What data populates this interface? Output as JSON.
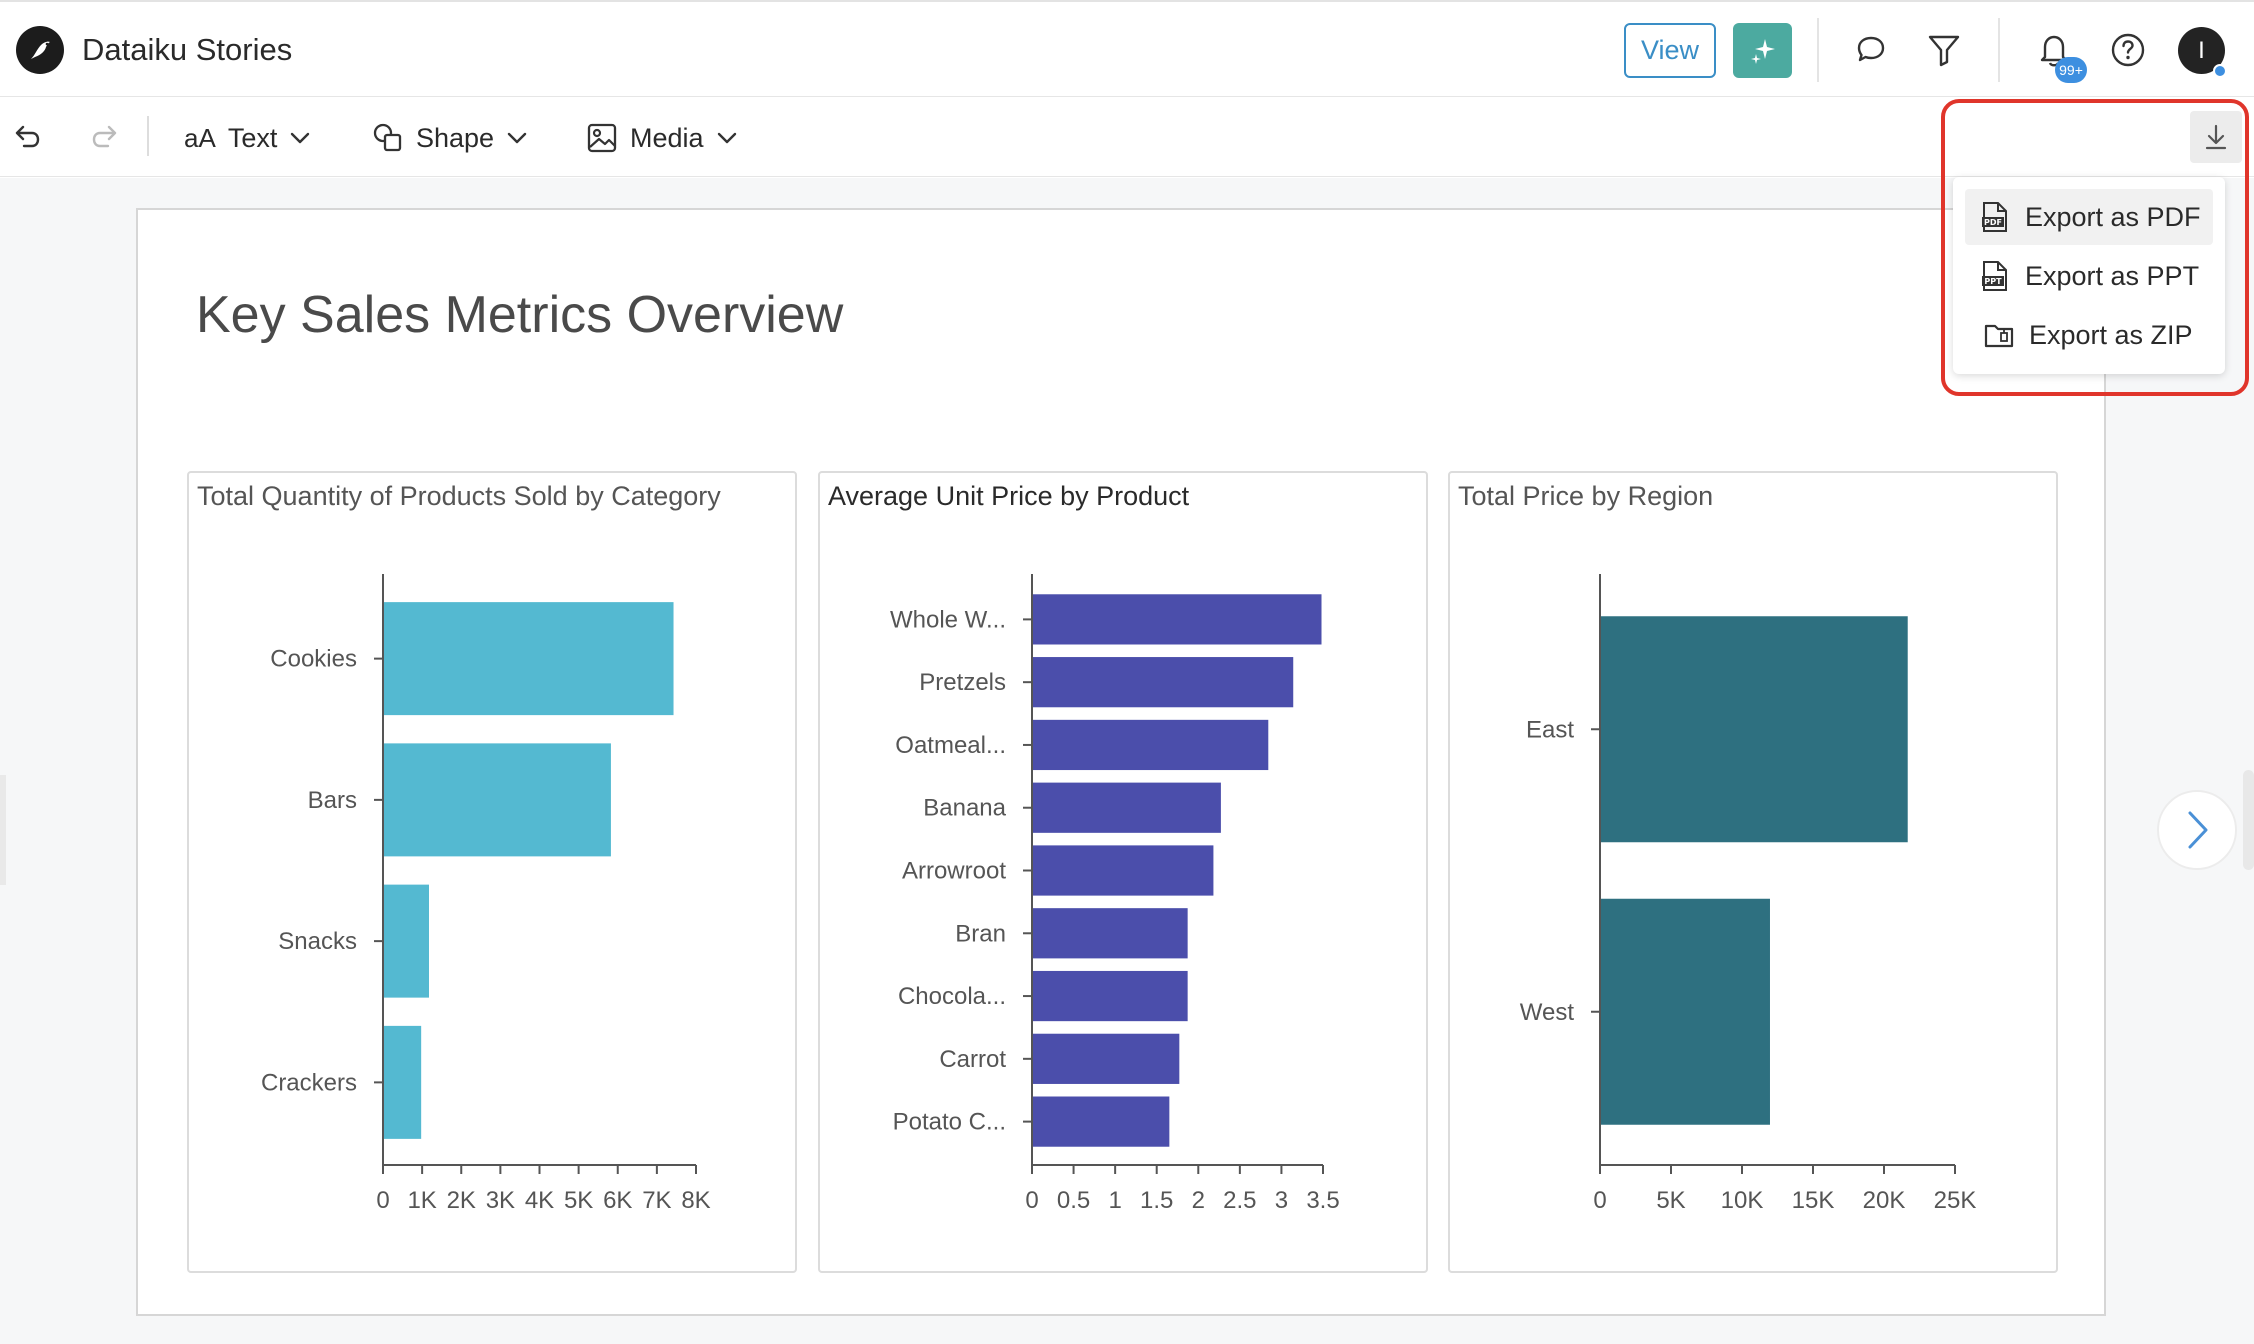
{
  "header": {
    "app_title": "Dataiku Stories",
    "view_label": "View",
    "notification_count": "99+",
    "avatar_initial": "I"
  },
  "toolbar": {
    "text_label": "Text",
    "text_prefix": "aA",
    "shape_label": "Shape",
    "media_label": "Media"
  },
  "export_menu": {
    "items": [
      {
        "label": "Export as PDF",
        "icon": "pdf-file-icon"
      },
      {
        "label": "Export as PPT",
        "icon": "ppt-file-icon"
      },
      {
        "label": "Export as ZIP",
        "icon": "zip-folder-icon"
      }
    ]
  },
  "slide": {
    "title": "Key Sales Metrics Overview"
  },
  "colors": {
    "chart1": "#54b9d1",
    "chart2": "#4b4eab",
    "chart3": "#2e7080",
    "accent": "#3a8ec6",
    "highlight": "#e0352b"
  },
  "chart_data": [
    {
      "type": "bar",
      "orientation": "horizontal",
      "title": "Total Quantity of Products Sold by Category",
      "categories": [
        "Cookies",
        "Bars",
        "Snacks",
        "Crackers"
      ],
      "values": [
        7400,
        5800,
        1150,
        950
      ],
      "xlim": [
        0,
        8000
      ],
      "ticks": [
        0,
        1000,
        2000,
        3000,
        4000,
        5000,
        6000,
        7000,
        8000
      ],
      "tick_labels": [
        "0",
        "1K",
        "2K",
        "3K",
        "4K",
        "5K",
        "6K",
        "7K",
        "8K"
      ]
    },
    {
      "type": "bar",
      "orientation": "horizontal",
      "title": "Average Unit Price by Product",
      "categories": [
        "Whole W...",
        "Pretzels",
        "Oatmeal...",
        "Banana",
        "Arrowroot",
        "Bran",
        "Chocola...",
        "Carrot",
        "Potato C..."
      ],
      "values": [
        3.47,
        3.13,
        2.83,
        2.26,
        2.17,
        1.86,
        1.86,
        1.76,
        1.64
      ],
      "xlim": [
        0,
        3.5
      ],
      "ticks": [
        0,
        0.5,
        1,
        1.5,
        2,
        2.5,
        3,
        3.5
      ],
      "tick_labels": [
        "0",
        "0.5",
        "1",
        "1.5",
        "2",
        "2.5",
        "3",
        "3.5"
      ]
    },
    {
      "type": "bar",
      "orientation": "horizontal",
      "title": "Total Price by Region",
      "categories": [
        "East",
        "West"
      ],
      "values": [
        21600,
        11900
      ],
      "xlim": [
        0,
        25000
      ],
      "ticks": [
        0,
        5000,
        10000,
        15000,
        20000,
        25000
      ],
      "tick_labels": [
        "0",
        "5K",
        "10K",
        "15K",
        "20K",
        "25K"
      ]
    }
  ]
}
